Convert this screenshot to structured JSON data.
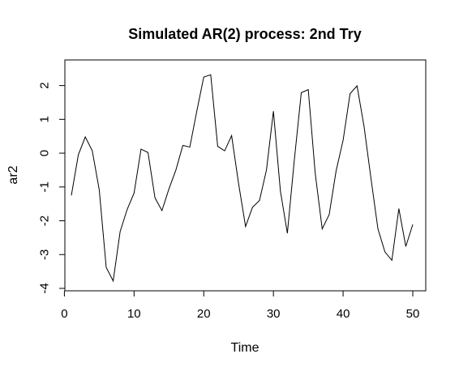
{
  "chart_data": {
    "type": "line",
    "title": "Simulated AR(2) process: 2nd Try",
    "xlabel": "Time",
    "ylabel": "ar2",
    "xlim": [
      1,
      50
    ],
    "ylim": [
      -4,
      2.35
    ],
    "x_ticks": [
      0,
      10,
      20,
      30,
      40,
      50
    ],
    "x_tick_labels": [
      "0",
      "10",
      "20",
      "30",
      "40",
      "50"
    ],
    "y_ticks": [
      -4,
      -3,
      -2,
      -1,
      0,
      1,
      2
    ],
    "y_tick_labels": [
      "-4",
      "-3",
      "-2",
      "-1",
      "0",
      "1",
      "2"
    ],
    "grid": false,
    "legend": "none",
    "line_color": "#000000",
    "series": [
      {
        "x": [
          1,
          2,
          3,
          4,
          5,
          6,
          7,
          8,
          9,
          10,
          11,
          12,
          13,
          14,
          15,
          16,
          17,
          18,
          19,
          20,
          21,
          22,
          23,
          24,
          25,
          26,
          27,
          28,
          29,
          30,
          31,
          32,
          33,
          34,
          35,
          36,
          37,
          38,
          39,
          40,
          41,
          42,
          43,
          44,
          45,
          46,
          47,
          48,
          49,
          50
        ],
        "values": [
          -1.25,
          -0.05,
          0.48,
          0.07,
          -1.08,
          -3.38,
          -3.78,
          -2.32,
          -1.67,
          -1.18,
          0.12,
          0.02,
          -1.32,
          -1.7,
          -1.06,
          -0.5,
          0.23,
          0.18,
          1.24,
          2.25,
          2.32,
          0.2,
          0.07,
          0.52,
          -0.9,
          -2.17,
          -1.6,
          -1.4,
          -0.5,
          1.24,
          -1.12,
          -2.37,
          -0.2,
          1.79,
          1.88,
          -0.6,
          -2.24,
          -1.82,
          -0.52,
          0.38,
          1.76,
          1.99,
          0.8,
          -0.75,
          -2.24,
          -2.92,
          -3.17,
          -1.64,
          -2.76,
          -2.11
        ]
      }
    ]
  }
}
